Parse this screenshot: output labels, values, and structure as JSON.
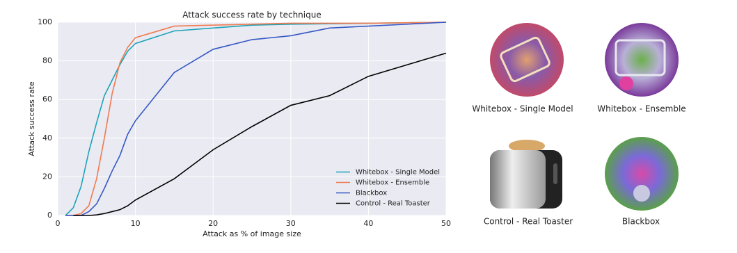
{
  "chart_data": {
    "type": "line",
    "title": "Attack success rate by technique",
    "x_label": "Attack as % of image size",
    "y_label": "Attack success rate",
    "xlim": [
      0,
      50
    ],
    "ylim": [
      0,
      100
    ],
    "xticks": [
      0,
      10,
      20,
      30,
      40,
      50
    ],
    "yticks": [
      0,
      20,
      40,
      60,
      80,
      100
    ],
    "grid": true,
    "legend": "lower right",
    "series": [
      {
        "name": "Whitebox - Single Model",
        "color": "#1ba3b8",
        "x": [
          1,
          2,
          3,
          4,
          5,
          6,
          7,
          8,
          9,
          10,
          15,
          20,
          25,
          30,
          40,
          50
        ],
        "values": [
          0,
          4,
          15,
          33,
          48,
          62,
          70,
          78,
          85,
          89,
          95.5,
          97,
          98.5,
          99,
          99.5,
          100
        ]
      },
      {
        "name": "Whitebox - Ensemble",
        "color": "#f07a50",
        "x": [
          1,
          2,
          3,
          4,
          5,
          6,
          7,
          8,
          9,
          10,
          15,
          20,
          25,
          30,
          40,
          50
        ],
        "values": [
          0,
          0,
          1,
          5,
          19,
          40,
          63,
          79,
          87,
          92,
          98,
          98.5,
          99,
          99.5,
          99.5,
          100
        ]
      },
      {
        "name": "Blackbox",
        "color": "#3457c4",
        "x": [
          1,
          2,
          3,
          4,
          5,
          6,
          7,
          8,
          9,
          10,
          15,
          20,
          25,
          30,
          35,
          40,
          50
        ],
        "values": [
          0,
          0,
          0,
          2,
          6,
          14,
          23,
          31,
          42,
          49,
          74,
          86,
          91,
          93,
          97,
          98,
          100
        ]
      },
      {
        "name": "Control - Real Toaster",
        "color": "#000000",
        "x": [
          2,
          3,
          4,
          5,
          6,
          7,
          8,
          9,
          10,
          15,
          20,
          25,
          30,
          35,
          40,
          50
        ],
        "values": [
          0,
          0,
          0,
          0.3,
          1,
          2,
          3,
          5,
          8,
          19,
          34,
          46,
          57,
          62,
          72,
          84
        ]
      }
    ]
  },
  "image_captions": [
    "Whitebox - Single Model",
    "Whitebox - Ensemble",
    "Control - Real Toaster",
    "Blackbox"
  ]
}
